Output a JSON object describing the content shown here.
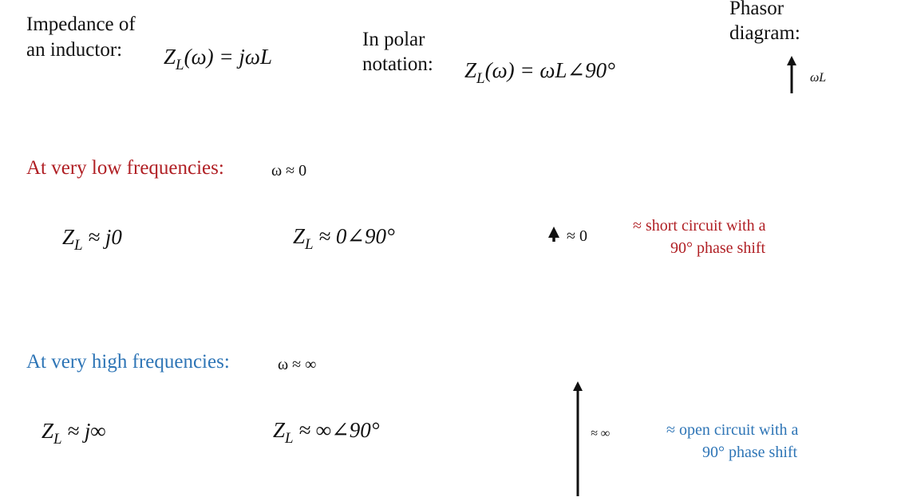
{
  "intro": {
    "label": [
      "Impedance of",
      "an inductor:"
    ],
    "formula": {
      "base": "Z",
      "sub": "L",
      "rest": "(ω) = jωL"
    }
  },
  "polar": {
    "label": [
      "In polar",
      "notation:"
    ],
    "formula": {
      "base": "Z",
      "sub": "L",
      "rest": "(ω) = ωL∠90°"
    }
  },
  "phasor": {
    "label": [
      "Phasor",
      "diagram:"
    ],
    "arrow_label": "ωL"
  },
  "low": {
    "heading": "At very low frequencies:",
    "condition": "ω ≈ 0",
    "rect_form": {
      "base": "Z",
      "sub": "L",
      "rest": " ≈ j0"
    },
    "polar_form": {
      "base": "Z",
      "sub": "L",
      "rest": " ≈ 0∠90°"
    },
    "arrow_label": "≈ 0",
    "note": [
      "≈ short circuit with a",
      "90° phase shift"
    ]
  },
  "high": {
    "heading": "At very high frequencies:",
    "condition": "ω ≈ ∞",
    "rect_form": {
      "base": "Z",
      "sub": "L",
      "rest": " ≈ j∞"
    },
    "polar_form": {
      "base": "Z",
      "sub": "L",
      "rest": " ≈ ∞∠90°"
    },
    "arrow_label": "≈ ∞",
    "note": [
      "≈ open circuit with a",
      "90° phase shift"
    ]
  }
}
